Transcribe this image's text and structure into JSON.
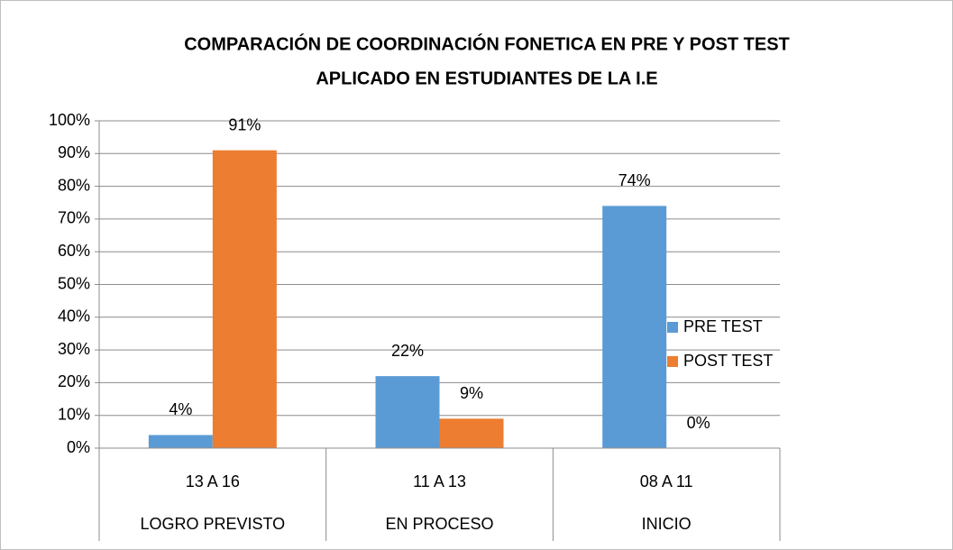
{
  "chart_data": {
    "type": "bar",
    "title": [
      "COMPARACIÓN DE COORDINACIÓN FONETICA EN PRE Y POST TEST",
      "APLICADO EN ESTUDIANTES DE LA I.E"
    ],
    "categories": [
      "13 A 16",
      "11 A 13",
      "08 A 11"
    ],
    "groups": [
      "LOGRO PREVISTO",
      "EN PROCESO",
      "INICIO"
    ],
    "series": [
      {
        "name": "PRE TEST",
        "color": "#5b9bd5",
        "values": [
          4,
          22,
          74
        ],
        "value_labels": [
          "4%",
          "22%",
          "74%"
        ]
      },
      {
        "name": "POST TEST",
        "color": "#ed7d31",
        "values": [
          91,
          9,
          0
        ],
        "value_labels": [
          "91%",
          "9%",
          "0%"
        ]
      }
    ],
    "ylim": [
      0,
      100
    ],
    "yticks": [
      {
        "value": 0,
        "label": "0%"
      },
      {
        "value": 10,
        "label": "10%"
      },
      {
        "value": 20,
        "label": "20%"
      },
      {
        "value": 30,
        "label": "30%"
      },
      {
        "value": 40,
        "label": "40%"
      },
      {
        "value": 50,
        "label": "50%"
      },
      {
        "value": 60,
        "label": "60%"
      },
      {
        "value": 70,
        "label": "70%"
      },
      {
        "value": 80,
        "label": "80%"
      },
      {
        "value": 90,
        "label": "90%"
      },
      {
        "value": 100,
        "label": "100%"
      }
    ],
    "grid": true,
    "legend": "right"
  }
}
